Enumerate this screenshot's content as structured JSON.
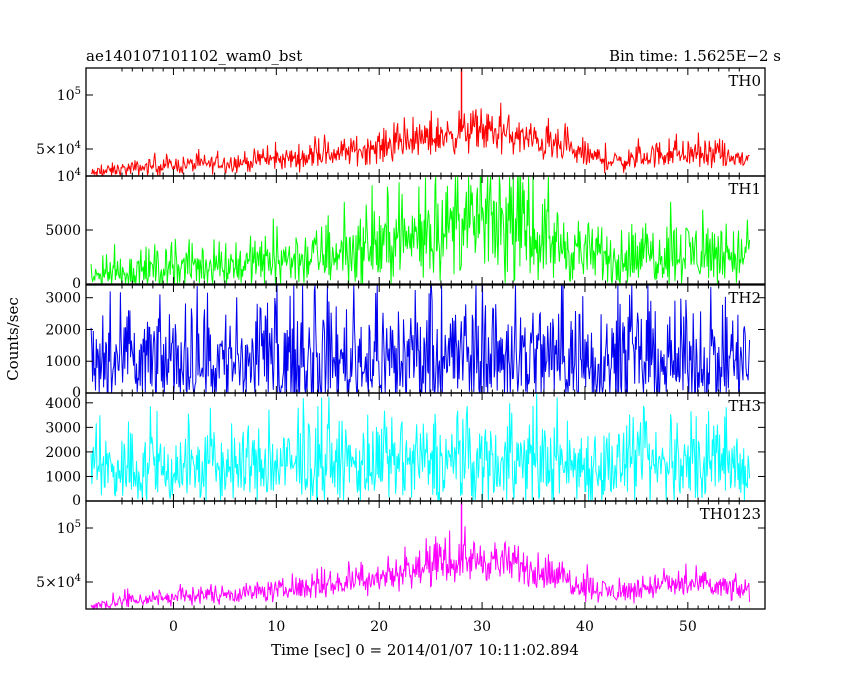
{
  "chart_data": {
    "type": "line",
    "title": "ae140107101102_wam0_bst",
    "bin_time_label": "Bin time: 1.5625E−2 s",
    "xlabel": "Time [sec] 0 = 2014/01/07 10:11:02.894",
    "ylabel": "Counts/sec",
    "xlim": [
      -8.5,
      57.5
    ],
    "x_ticks": [
      {
        "value": 0,
        "label": "0"
      },
      {
        "value": 10,
        "label": "10"
      },
      {
        "value": 20,
        "label": "20"
      },
      {
        "value": 30,
        "label": "30"
      },
      {
        "value": 40,
        "label": "40"
      },
      {
        "value": 50,
        "label": "50"
      }
    ],
    "data_x_range": [
      -8,
      56
    ],
    "panels": [
      {
        "name": "TH0",
        "color": "#ff0000",
        "ylim": [
          25000,
          125000
        ],
        "y_ticks": [
          {
            "value": 100000,
            "label": "10",
            "sup": "5"
          },
          {
            "value": 50000,
            "label": "5×10",
            "sup": "4"
          }
        ],
        "envelope": {
          "x": [
            -8,
            -6,
            -2,
            0,
            5,
            10,
            15,
            20,
            25,
            28,
            30,
            32,
            35,
            38,
            41,
            43,
            45,
            47,
            50,
            53,
            56
          ],
          "mean": [
            27000,
            30000,
            34000,
            35000,
            37000,
            40000,
            45000,
            52000,
            60000,
            66000,
            67000,
            64000,
            58000,
            50000,
            42000,
            38000,
            41000,
            45000,
            46000,
            43000,
            40000
          ],
          "noise": [
            2500,
            3000,
            3500,
            3500,
            4000,
            4500,
            5500,
            6500,
            7500,
            8500,
            9000,
            8500,
            7500,
            6500,
            5500,
            4500,
            5000,
            5500,
            6000,
            5500,
            5000
          ]
        },
        "spikes": [
          {
            "x": 28,
            "value": 125000
          }
        ]
      },
      {
        "name": "TH1",
        "color": "#00ff00",
        "ylim": [
          0,
          10000
        ],
        "y_ticks": [
          {
            "value": 10000,
            "label": "10",
            "sup": "4"
          },
          {
            "value": 5000,
            "label": "5000"
          },
          {
            "value": 0,
            "label": "0"
          }
        ],
        "envelope": {
          "x": [
            -8,
            -6,
            -2,
            0,
            5,
            10,
            15,
            20,
            25,
            28,
            30,
            32,
            35,
            38,
            41,
            43,
            45,
            47,
            50,
            53,
            56
          ],
          "mean": [
            500,
            1000,
            1400,
            1500,
            1800,
            2200,
            2700,
            3600,
            4800,
            5600,
            5700,
            5300,
            4500,
            3500,
            2600,
            2200,
            2500,
            2900,
            3000,
            2800,
            2600
          ],
          "noise": [
            500,
            700,
            900,
            900,
            1000,
            1100,
            1300,
            1600,
            1800,
            2000,
            2100,
            2000,
            1800,
            1500,
            1200,
            1100,
            1200,
            1300,
            1400,
            1300,
            1200
          ]
        },
        "spikes": []
      },
      {
        "name": "TH2",
        "color": "#0000ee",
        "ylim": [
          0,
          3400
        ],
        "y_ticks": [
          {
            "value": 3000,
            "label": "3000"
          },
          {
            "value": 2000,
            "label": "2000"
          },
          {
            "value": 1000,
            "label": "1000"
          },
          {
            "value": 0,
            "label": "0"
          }
        ],
        "envelope": {
          "x": [
            -8,
            0,
            10,
            20,
            28,
            32,
            40,
            48,
            56
          ],
          "mean": [
            900,
            1000,
            1000,
            1100,
            1200,
            1200,
            1100,
            1000,
            1000
          ],
          "noise": [
            700,
            750,
            750,
            800,
            850,
            850,
            800,
            750,
            750
          ]
        },
        "spikes": []
      },
      {
        "name": "TH3",
        "color": "#00ffff",
        "ylim": [
          0,
          4400
        ],
        "y_ticks": [
          {
            "value": 4000,
            "label": "4000"
          },
          {
            "value": 3000,
            "label": "3000"
          },
          {
            "value": 2000,
            "label": "2000"
          },
          {
            "value": 1000,
            "label": "1000"
          },
          {
            "value": 0,
            "label": "0"
          }
        ],
        "envelope": {
          "x": [
            -8,
            0,
            10,
            20,
            28,
            32,
            40,
            48,
            56
          ],
          "mean": [
            1300,
            1350,
            1400,
            1500,
            1600,
            1600,
            1500,
            1450,
            1400
          ],
          "noise": [
            650,
            700,
            720,
            760,
            800,
            800,
            760,
            720,
            700
          ]
        },
        "spikes": []
      },
      {
        "name": "TH0123",
        "color": "#ff00ff",
        "ylim": [
          25000,
          125000
        ],
        "y_ticks": [
          {
            "value": 100000,
            "label": "10",
            "sup": "5"
          },
          {
            "value": 50000,
            "label": "5×10",
            "sup": "4"
          }
        ],
        "envelope": {
          "x": [
            -8,
            -6,
            -2,
            0,
            5,
            10,
            15,
            20,
            25,
            28,
            30,
            32,
            35,
            38,
            41,
            43,
            45,
            47,
            50,
            53,
            56
          ],
          "mean": [
            27000,
            31000,
            35000,
            36000,
            39000,
            42000,
            47000,
            55000,
            64000,
            70000,
            71000,
            68000,
            61000,
            53000,
            44000,
            40000,
            43000,
            47000,
            48000,
            45000,
            42000
          ],
          "noise": [
            2500,
            3000,
            3500,
            3500,
            4000,
            4500,
            5500,
            6500,
            7500,
            8500,
            9000,
            8500,
            7500,
            6500,
            5500,
            4500,
            5000,
            5500,
            6000,
            5500,
            5000
          ]
        },
        "spikes": [
          {
            "x": 28,
            "value": 125000
          }
        ]
      }
    ]
  }
}
